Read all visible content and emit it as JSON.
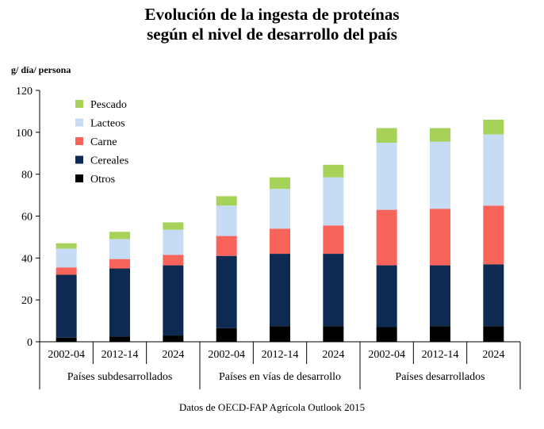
{
  "chart_data": {
    "type": "bar",
    "stacked": true,
    "title": [
      "Evolución de la ingesta de proteínas",
      "según el nivel de desarrollo del país"
    ],
    "ylabel": "g/ día/ persona",
    "ylim": [
      0,
      120
    ],
    "yticks": [
      0,
      20,
      40,
      60,
      80,
      100,
      120
    ],
    "grid": false,
    "legend_position": "top-left",
    "categories": [
      "2002-04",
      "2012-14",
      "2024",
      "2002-04",
      "2012-14",
      "2024",
      "2002-04",
      "2012-14",
      "2024"
    ],
    "groups": [
      {
        "label": "Países subdesarrollados",
        "span": 3
      },
      {
        "label": "Países en vías de desarrollo",
        "span": 3
      },
      {
        "label": "Países desarrollados",
        "span": 3
      }
    ],
    "series": [
      {
        "name": "Otros",
        "color": "#000000",
        "values": [
          2,
          2.5,
          3,
          6.5,
          7.5,
          7.5,
          7,
          7.5,
          7.5
        ]
      },
      {
        "name": "Cereales",
        "color": "#0d2b52",
        "values": [
          30,
          32.5,
          33.5,
          34.5,
          34.5,
          34.5,
          29.5,
          29,
          29.5
        ]
      },
      {
        "name": "Carne",
        "color": "#f8635a",
        "values": [
          3.5,
          4.5,
          5,
          9.5,
          12,
          13.5,
          26.5,
          27,
          28
        ]
      },
      {
        "name": "Lacteos",
        "color": "#c6dcf4",
        "values": [
          9,
          9.5,
          12,
          14.5,
          19,
          23,
          32,
          32,
          34
        ]
      },
      {
        "name": "Pescado",
        "color": "#a6d25a",
        "values": [
          2.5,
          3.5,
          3.5,
          4.5,
          5.5,
          6,
          7,
          6.5,
          7
        ]
      }
    ],
    "source": "Datos de OECD-FAP Agrícola Outlook 2015"
  }
}
